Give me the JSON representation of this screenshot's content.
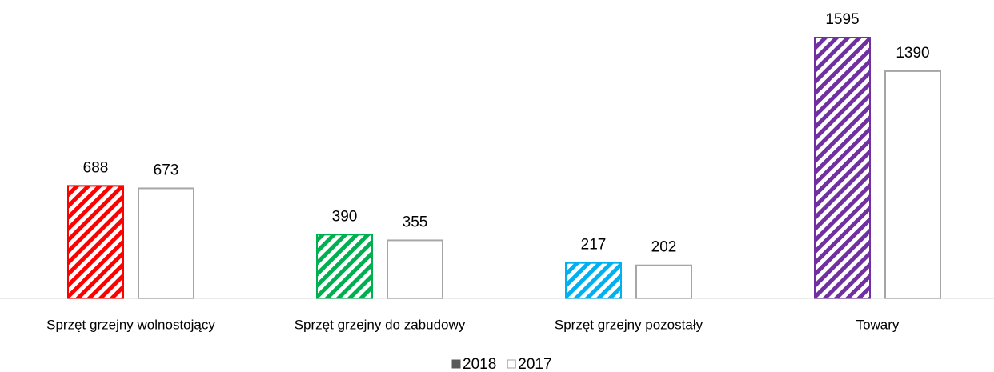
{
  "chart_data": {
    "type": "bar",
    "categories": [
      "Sprzęt grzejny wolnostojący",
      "Sprzęt grzejny do zabudowy",
      "Sprzęt grzejny pozostały",
      "Towary"
    ],
    "series": [
      {
        "name": "2018",
        "color": "#595959",
        "colors": [
          "#ff0000",
          "#00b050",
          "#00b0f0",
          "#7030a0"
        ],
        "hatch": true,
        "values": [
          688,
          390,
          217,
          1595
        ]
      },
      {
        "name": "2017",
        "color": "#a6a6a6",
        "values": [
          673,
          355,
          202,
          1390
        ]
      }
    ],
    "ylim": [
      0,
      1600
    ],
    "legend": "bottom"
  }
}
